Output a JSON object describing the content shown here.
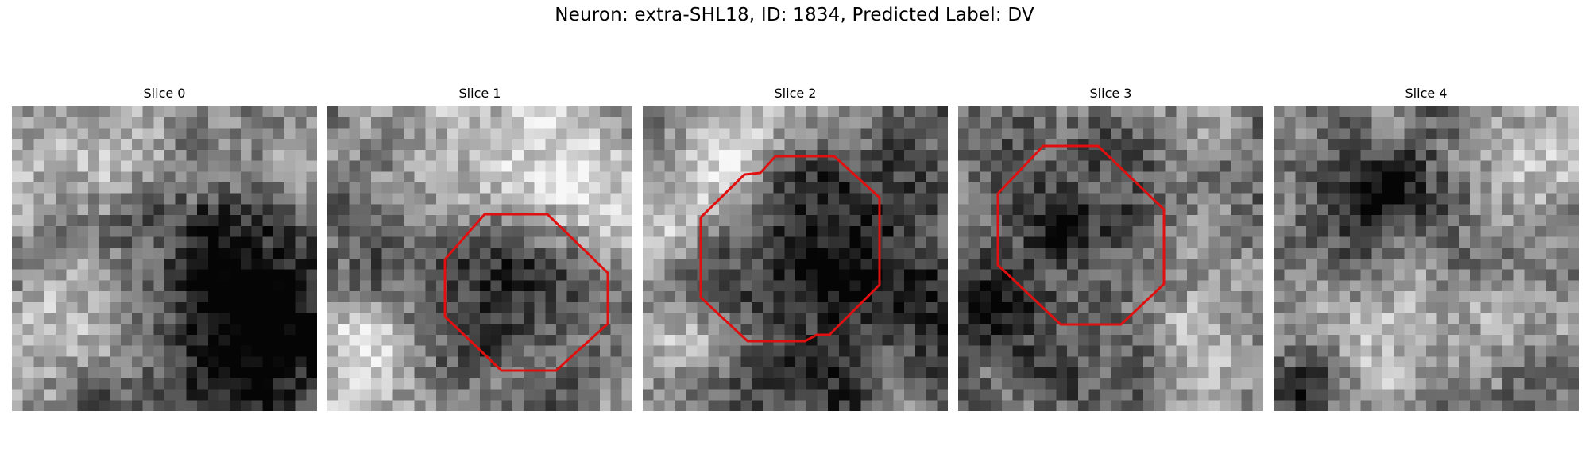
{
  "figure": {
    "title": "Neuron: extra-SHL18, ID: 1834, Predicted Label: DV"
  },
  "panels": [
    {
      "title": "Slice 0",
      "contour": null
    },
    {
      "title": "Slice 1",
      "contour": "octagon-1"
    },
    {
      "title": "Slice 2",
      "contour": "octagon-2"
    },
    {
      "title": "Slice 3",
      "contour": "octagon-3"
    },
    {
      "title": "Slice 4",
      "contour": null
    }
  ],
  "colors": {
    "contour": "#e01010",
    "colormap": "gray"
  }
}
